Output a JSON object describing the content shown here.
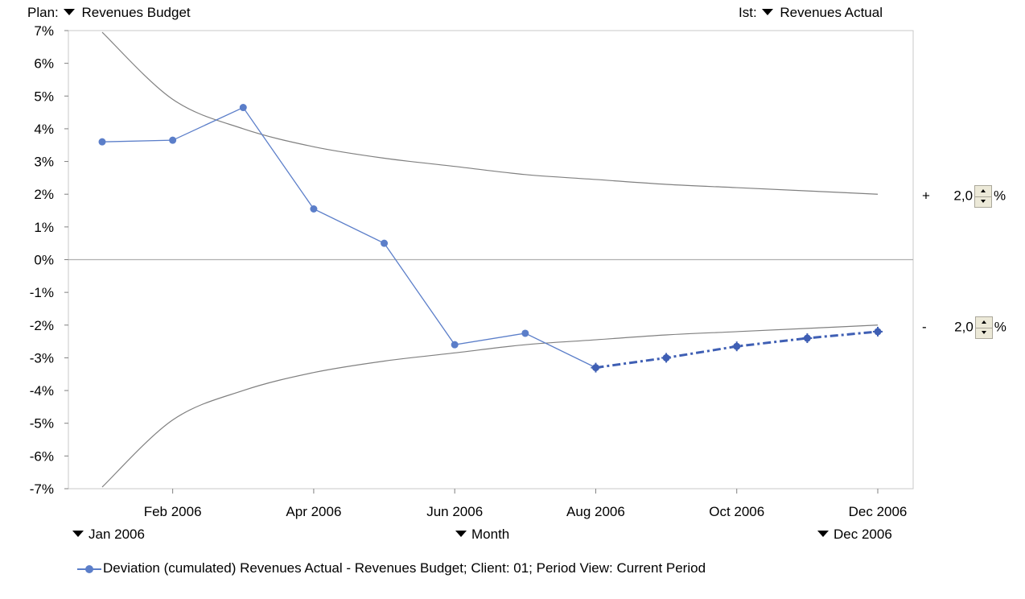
{
  "header": {
    "plan_label": "Plan:",
    "plan_value": "Revenues Budget",
    "ist_label": "Ist:",
    "ist_value": "Revenues Actual"
  },
  "controls": {
    "start_period": "Jan 2006",
    "granularity": "Month",
    "end_period": "Dec 2006",
    "upper_sign": "+",
    "upper_value": "2,0",
    "lower_sign": "-",
    "lower_value": "2,0",
    "percent": "%"
  },
  "legend": {
    "label": "Deviation (cumulated) Revenues Actual - Revenues Budget; Client: 01; Period View: Current Period"
  },
  "chart_data": {
    "type": "line",
    "x": [
      "Jan 2006",
      "Feb 2006",
      "Mar 2006",
      "Apr 2006",
      "May 2006",
      "Jun 2006",
      "Jul 2006",
      "Aug 2006",
      "Sep 2006",
      "Oct 2006",
      "Nov 2006",
      "Dec 2006"
    ],
    "x_tick_labels": [
      "Feb 2006",
      "Apr 2006",
      "Jun 2006",
      "Aug 2006",
      "Oct 2006",
      "Dec 2006"
    ],
    "y_tick_labels": [
      "7%",
      "6%",
      "5%",
      "4%",
      "3%",
      "2%",
      "1%",
      "0%",
      "-1%",
      "-2%",
      "-3%",
      "-4%",
      "-5%",
      "-6%",
      "-7%"
    ],
    "ylim": [
      -7,
      7
    ],
    "series": [
      {
        "name": "Deviation (cumulated) Revenues Actual - Revenues Budget; Client: 01; Period View: Current Period",
        "actual_values": [
          3.6,
          3.65,
          4.65,
          1.55,
          0.5,
          -2.6,
          -2.25,
          -3.3
        ],
        "forecast_values": [
          -3.3,
          -3.0,
          -2.65,
          -2.4,
          -2.2
        ],
        "forecast_start_index": 7,
        "color": "#5b7ec9"
      }
    ],
    "upper_band": [
      6.95,
      4.9,
      4.0,
      3.45,
      3.1,
      2.85,
      2.6,
      2.45,
      2.3,
      2.2,
      2.1,
      2.0
    ],
    "lower_band": [
      -6.95,
      -4.9,
      -4.0,
      -3.45,
      -3.1,
      -2.85,
      -2.6,
      -2.45,
      -2.3,
      -2.2,
      -2.1,
      -2.0
    ],
    "band_color": "#808080",
    "zero_line": true,
    "grid": false
  }
}
